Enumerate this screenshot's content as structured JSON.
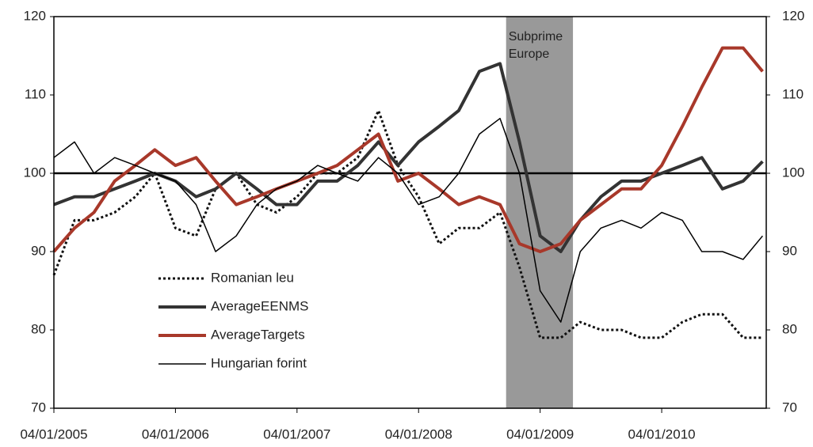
{
  "chart_data": {
    "type": "line",
    "x": [
      2005.0,
      2005.17,
      2005.33,
      2005.5,
      2005.67,
      2005.83,
      2006.0,
      2006.17,
      2006.33,
      2006.5,
      2006.67,
      2006.83,
      2007.0,
      2007.17,
      2007.33,
      2007.5,
      2007.67,
      2007.83,
      2008.0,
      2008.17,
      2008.33,
      2008.5,
      2008.67,
      2008.83,
      2009.0,
      2009.17,
      2009.33,
      2009.5,
      2009.67,
      2009.83,
      2010.0,
      2010.17,
      2010.33,
      2010.5,
      2010.67,
      2010.83
    ],
    "series": [
      {
        "name": "Romanian leu",
        "color": "#111111",
        "style": "dotted",
        "width": 3,
        "values": [
          87,
          94,
          94,
          95,
          97,
          100,
          93,
          92,
          98,
          100,
          96,
          95,
          97,
          100,
          100,
          102,
          108,
          101,
          97,
          91,
          93,
          93,
          95,
          88,
          79,
          79,
          81,
          80,
          80,
          79,
          79,
          81,
          82,
          82,
          79,
          79
        ]
      },
      {
        "name": "AverageEENMS",
        "color": "#333333",
        "style": "solid",
        "width": 4,
        "values": [
          96,
          97,
          97,
          98,
          99,
          100,
          99,
          97,
          98,
          100,
          98,
          96,
          96,
          99,
          99,
          101,
          104,
          101,
          104,
          106,
          108,
          113,
          114,
          104,
          92,
          90,
          94,
          97,
          99,
          99,
          100,
          101,
          102,
          98,
          99,
          101.5
        ]
      },
      {
        "name": "AverageTargets",
        "color": "#a8382a",
        "style": "solid",
        "width": 4,
        "values": [
          90,
          93,
          95,
          99,
          101,
          103,
          101,
          102,
          99,
          96,
          97,
          98,
          99,
          100,
          101,
          103,
          105,
          99,
          100,
          98,
          96,
          97,
          96,
          91,
          90,
          91,
          94,
          96,
          98,
          98,
          101,
          106,
          111,
          116,
          116,
          113
        ]
      },
      {
        "name": "Hungarian forint",
        "color": "#000000",
        "style": "solid",
        "width": 1.5,
        "values": [
          102,
          104,
          100,
          102,
          101,
          100,
          99,
          96,
          90,
          92,
          96,
          98,
          99,
          101,
          100,
          99,
          102,
          100,
          96,
          97,
          100,
          105,
          107,
          100,
          85,
          81,
          90,
          93,
          94,
          93,
          95,
          94,
          90,
          90,
          89,
          92
        ]
      }
    ],
    "xlim": [
      2005.0,
      2010.86
    ],
    "xticks": [
      {
        "value": 2005.0,
        "label": "04/01/2005"
      },
      {
        "value": 2006.0,
        "label": "04/01/2006"
      },
      {
        "value": 2007.0,
        "label": "04/01/2007"
      },
      {
        "value": 2008.0,
        "label": "04/01/2008"
      },
      {
        "value": 2009.0,
        "label": "04/01/2009"
      },
      {
        "value": 2010.0,
        "label": "04/01/2010"
      }
    ],
    "ylim": [
      70,
      120
    ],
    "yticks": [
      70,
      80,
      90,
      100,
      110,
      120
    ],
    "mirror_right_axis": true,
    "reference_line": 100,
    "shaded_region": {
      "x": [
        2008.72,
        2009.27
      ],
      "color": "#999999",
      "label_lines": [
        "Subprime",
        "Europe"
      ]
    },
    "legend": "lower-left"
  }
}
